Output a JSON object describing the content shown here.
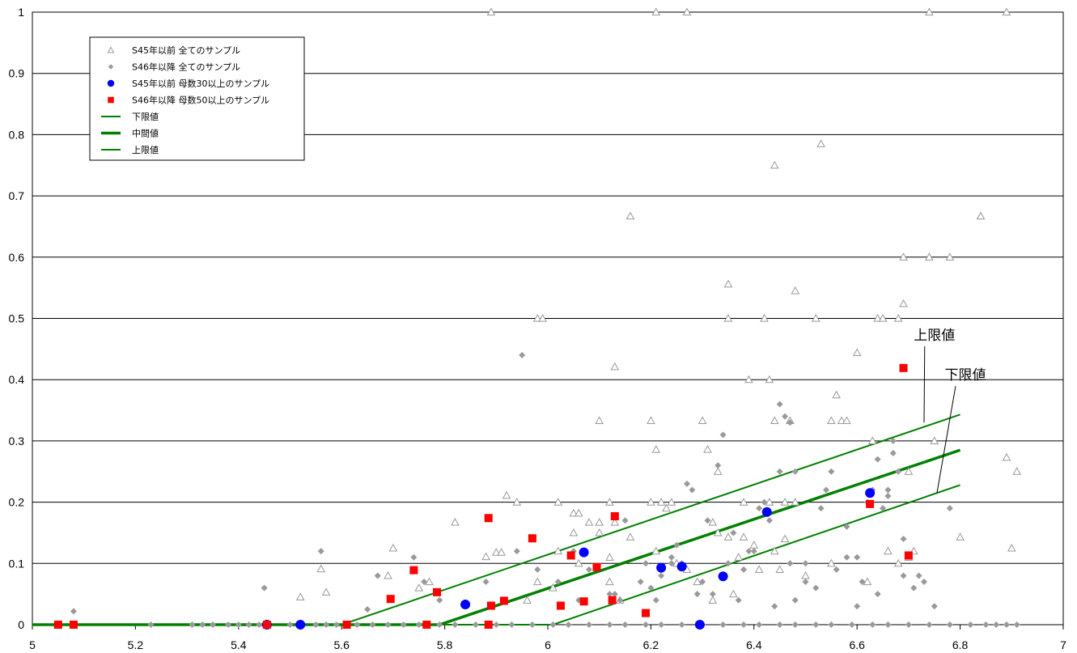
{
  "chart_data": {
    "type": "scatter",
    "xlim": [
      5,
      7
    ],
    "ylim": [
      0,
      1
    ],
    "x_ticks": [
      "5",
      "5.2",
      "5.4",
      "5.6",
      "5.8",
      "6",
      "6.2",
      "6.4",
      "6.6",
      "6.8",
      "7"
    ],
    "y_ticks": [
      "0",
      "0.1",
      "0.2",
      "0.3",
      "0.4",
      "0.5",
      "0.6",
      "0.7",
      "0.8",
      "0.9",
      "1"
    ],
    "grid": "horizontal",
    "legend_position": "top-left",
    "colors": {
      "triangle": "#999999",
      "diamond": "#999999",
      "circle": "#0000ff",
      "square": "#ff0000",
      "line": "#008000"
    },
    "series": [
      {
        "name": "S45年以前 全てのサンプル",
        "marker": "triangle",
        "points": [
          [
            5.89,
            1
          ],
          [
            6.21,
            1
          ],
          [
            6.27,
            1
          ],
          [
            6.74,
            1
          ],
          [
            6.89,
            1
          ],
          [
            6.53,
            0.785
          ],
          [
            6.44,
            0.75
          ],
          [
            6.84,
            0.667
          ],
          [
            6.16,
            0.667
          ],
          [
            6.69,
            0.6
          ],
          [
            6.74,
            0.6
          ],
          [
            6.78,
            0.6
          ],
          [
            6.35,
            0.556
          ],
          [
            6.48,
            0.545
          ],
          [
            6.69,
            0.524
          ],
          [
            5.98,
            0.5
          ],
          [
            5.99,
            0.5
          ],
          [
            6.35,
            0.5
          ],
          [
            6.42,
            0.5
          ],
          [
            6.52,
            0.5
          ],
          [
            6.64,
            0.5
          ],
          [
            6.65,
            0.5
          ],
          [
            6.68,
            0.5
          ],
          [
            6.6,
            0.444
          ],
          [
            6.13,
            0.421
          ],
          [
            6.39,
            0.4
          ],
          [
            6.43,
            0.4
          ],
          [
            6.56,
            0.375
          ],
          [
            6.57,
            0.333
          ],
          [
            6.58,
            0.333
          ],
          [
            6.1,
            0.333
          ],
          [
            6.2,
            0.333
          ],
          [
            6.3,
            0.333
          ],
          [
            6.44,
            0.333
          ],
          [
            6.55,
            0.333
          ],
          [
            6.47,
            0.333
          ],
          [
            6.75,
            0.3
          ],
          [
            6.63,
            0.3
          ],
          [
            6.21,
            0.286
          ],
          [
            6.31,
            0.286
          ],
          [
            6.33,
            0.25
          ],
          [
            6.89,
            0.273
          ],
          [
            6.91,
            0.25
          ],
          [
            6.7,
            0.25
          ],
          [
            6.43,
            0.2
          ],
          [
            6.46,
            0.2
          ],
          [
            6.48,
            0.2
          ],
          [
            6.38,
            0.2
          ],
          [
            6.2,
            0.2
          ],
          [
            6.24,
            0.2
          ],
          [
            6.12,
            0.2
          ],
          [
            6.02,
            0.2
          ],
          [
            5.94,
            0.2
          ],
          [
            5.92,
            0.211
          ],
          [
            6.05,
            0.182
          ],
          [
            6.06,
            0.182
          ],
          [
            6.08,
            0.167
          ],
          [
            6.1,
            0.167
          ],
          [
            6.13,
            0.167
          ],
          [
            6.16,
            0.143
          ],
          [
            6.32,
            0.167
          ],
          [
            6.35,
            0.143
          ],
          [
            6.38,
            0.143
          ],
          [
            5.82,
            0.167
          ],
          [
            5.88,
            0.111
          ],
          [
            5.9,
            0.118
          ],
          [
            5.91,
            0.118
          ],
          [
            5.7,
            0.125
          ],
          [
            5.52,
            0.045
          ],
          [
            5.57,
            0.053
          ],
          [
            5.56,
            0.091
          ],
          [
            6.8,
            0.143
          ],
          [
            6.9,
            0.125
          ],
          [
            6.68,
            0.1
          ],
          [
            6.55,
            0.1
          ],
          [
            6.36,
            0.05
          ],
          [
            6.25,
            0.1
          ],
          [
            6.22,
            0.2
          ],
          [
            6.12,
            0.07
          ],
          [
            6.06,
            0.1
          ],
          [
            5.98,
            0.07
          ],
          [
            5.96,
            0.04
          ],
          [
            5.77,
            0.07
          ],
          [
            5.75,
            0.06
          ],
          [
            5.69,
            0.08
          ],
          [
            6.01,
            0.06
          ],
          [
            6.21,
            0.12
          ],
          [
            6.62,
            0.07
          ],
          [
            6.27,
            0.09
          ],
          [
            6.33,
            0.15
          ],
          [
            6.45,
            0.09
          ],
          [
            6.5,
            0.08
          ],
          [
            6.44,
            0.12
          ],
          [
            6.37,
            0.11
          ],
          [
            6.05,
            0.15
          ],
          [
            6.1,
            0.15
          ],
          [
            6.14,
            0.04
          ],
          [
            6.29,
            0.07
          ],
          [
            6.32,
            0.04
          ],
          [
            6.41,
            0.09
          ],
          [
            6.66,
            0.12
          ],
          [
            6.7,
            0.11
          ],
          [
            6.12,
            0.11
          ],
          [
            6.02,
            0.12
          ],
          [
            6.23,
            0.19
          ],
          [
            6.46,
            0.14
          ],
          [
            6.4,
            0.13
          ],
          [
            6.71,
            0.12
          ]
        ]
      },
      {
        "name": "S46年以降 全てのサンプル",
        "marker": "diamond",
        "points": [
          [
            5.08,
            0.022
          ],
          [
            5.45,
            0.06
          ],
          [
            5.56,
            0.12
          ],
          [
            5.65,
            0.025
          ],
          [
            5.67,
            0.08
          ],
          [
            5.74,
            0.11
          ],
          [
            5.76,
            0.07
          ],
          [
            5.79,
            0.04
          ],
          [
            5.88,
            0.07
          ],
          [
            5.94,
            0.12
          ],
          [
            5.95,
            0.44
          ],
          [
            5.98,
            0.09
          ],
          [
            6.02,
            0.07
          ],
          [
            6.05,
            0.12
          ],
          [
            6.08,
            0.09
          ],
          [
            6.12,
            0.05
          ],
          [
            6.18,
            0.07
          ],
          [
            6.2,
            0.06
          ],
          [
            6.22,
            0.08
          ],
          [
            6.21,
            0.04
          ],
          [
            6.24,
            0.11
          ],
          [
            6.25,
            0.13
          ],
          [
            6.26,
            0.1
          ],
          [
            6.28,
            0.22
          ],
          [
            6.27,
            0.23
          ],
          [
            6.3,
            0.07
          ],
          [
            6.31,
            0.17
          ],
          [
            6.33,
            0.26
          ],
          [
            6.34,
            0.31
          ],
          [
            6.36,
            0.15
          ],
          [
            6.38,
            0.09
          ],
          [
            6.39,
            0.12
          ],
          [
            6.41,
            0.19
          ],
          [
            6.42,
            0.2
          ],
          [
            6.43,
            0.17
          ],
          [
            6.45,
            0.25
          ],
          [
            6.46,
            0.34
          ],
          [
            6.47,
            0.33
          ],
          [
            6.45,
            0.36
          ],
          [
            6.48,
            0.25
          ],
          [
            6.5,
            0.1
          ],
          [
            6.52,
            0.06
          ],
          [
            6.53,
            0.19
          ],
          [
            6.54,
            0.22
          ],
          [
            6.55,
            0.25
          ],
          [
            6.58,
            0.11
          ],
          [
            6.6,
            0.11
          ],
          [
            6.61,
            0.07
          ],
          [
            6.62,
            0.2
          ],
          [
            6.63,
            0.22
          ],
          [
            6.64,
            0.27
          ],
          [
            6.65,
            0.19
          ],
          [
            6.66,
            0.21
          ],
          [
            6.67,
            0.3
          ],
          [
            6.68,
            0.25
          ],
          [
            6.69,
            0.14
          ],
          [
            6.69,
            0.08
          ],
          [
            6.71,
            0.06
          ],
          [
            6.72,
            0.08
          ],
          [
            6.73,
            0.07
          ],
          [
            6.75,
            0.03
          ],
          [
            6.78,
            0.19
          ],
          [
            6.44,
            0.03
          ],
          [
            6.37,
            0.04
          ],
          [
            6.29,
            0.05
          ],
          [
            6.19,
            0.1
          ],
          [
            6.14,
            0.04
          ],
          [
            6.06,
            0.04
          ],
          [
            6.35,
            0.1
          ],
          [
            6.47,
            0.1
          ],
          [
            6.5,
            0.07
          ],
          [
            6.56,
            0.09
          ],
          [
            6.6,
            0.03
          ],
          [
            6.58,
            0.16
          ],
          [
            6.64,
            0.05
          ],
          [
            6.66,
            0.22
          ],
          [
            6.67,
            0.28
          ],
          [
            6.13,
            0.05
          ],
          [
            6.15,
            0.17
          ],
          [
            6.24,
            0.1
          ],
          [
            6.32,
            0.05
          ],
          [
            6.4,
            0.12
          ],
          [
            6.48,
            0.04
          ],
          [
            5.05,
            0
          ],
          [
            5.23,
            0
          ],
          [
            5.31,
            0
          ],
          [
            5.33,
            0
          ],
          [
            5.35,
            0
          ],
          [
            5.38,
            0
          ],
          [
            5.4,
            0
          ],
          [
            5.42,
            0
          ],
          [
            5.44,
            0
          ],
          [
            5.5,
            0
          ],
          [
            5.52,
            0
          ],
          [
            5.55,
            0
          ],
          [
            5.57,
            0
          ],
          [
            5.59,
            0
          ],
          [
            5.63,
            0
          ],
          [
            5.66,
            0
          ],
          [
            5.69,
            0
          ],
          [
            5.72,
            0
          ],
          [
            5.75,
            0
          ],
          [
            5.79,
            0
          ],
          [
            5.82,
            0
          ],
          [
            5.86,
            0
          ],
          [
            5.9,
            0
          ],
          [
            5.93,
            0
          ],
          [
            5.97,
            0
          ],
          [
            6.01,
            0
          ],
          [
            6.04,
            0
          ],
          [
            6.08,
            0
          ],
          [
            6.12,
            0
          ],
          [
            6.15,
            0
          ],
          [
            6.19,
            0
          ],
          [
            6.22,
            0
          ],
          [
            6.26,
            0
          ],
          [
            6.3,
            0
          ],
          [
            6.34,
            0
          ],
          [
            6.38,
            0
          ],
          [
            6.41,
            0
          ],
          [
            6.45,
            0
          ],
          [
            6.48,
            0
          ],
          [
            6.52,
            0
          ],
          [
            6.55,
            0
          ],
          [
            6.59,
            0
          ],
          [
            6.63,
            0
          ],
          [
            6.66,
            0
          ],
          [
            6.7,
            0
          ],
          [
            6.74,
            0
          ],
          [
            6.78,
            0
          ],
          [
            6.82,
            0
          ],
          [
            6.85,
            0
          ],
          [
            6.87,
            0
          ],
          [
            6.89,
            0
          ],
          [
            6.91,
            0
          ]
        ]
      },
      {
        "name": "S45年以前 母数30以上のサンプル",
        "marker": "circle",
        "points": [
          [
            5.455,
            0
          ],
          [
            5.52,
            0
          ],
          [
            5.84,
            0.033
          ],
          [
            6.07,
            0.118
          ],
          [
            6.22,
            0.093
          ],
          [
            6.26,
            0.095
          ],
          [
            6.295,
            0
          ],
          [
            6.34,
            0.079
          ],
          [
            6.425,
            0.184
          ],
          [
            6.625,
            0.215
          ]
        ]
      },
      {
        "name": "S46年以降 母数50以上のサンプル",
        "marker": "square",
        "points": [
          [
            5.05,
            0
          ],
          [
            5.08,
            0
          ],
          [
            5.455,
            0
          ],
          [
            5.61,
            0
          ],
          [
            5.765,
            0
          ],
          [
            5.885,
            0
          ],
          [
            5.695,
            0.042
          ],
          [
            5.74,
            0.089
          ],
          [
            5.785,
            0.053
          ],
          [
            5.885,
            0.174
          ],
          [
            5.89,
            0.031
          ],
          [
            5.915,
            0.039
          ],
          [
            5.97,
            0.141
          ],
          [
            6.025,
            0.031
          ],
          [
            6.045,
            0.113
          ],
          [
            6.07,
            0.038
          ],
          [
            6.095,
            0.094
          ],
          [
            6.125,
            0.04
          ],
          [
            6.13,
            0.177
          ],
          [
            6.19,
            0.019
          ],
          [
            6.625,
            0.197
          ],
          [
            6.69,
            0.419
          ],
          [
            6.7,
            0.113
          ]
        ]
      },
      {
        "name": "下限値",
        "marker": "line",
        "points": [
          [
            5,
            0
          ],
          [
            6.01,
            0
          ],
          [
            6.8,
            0.228
          ]
        ]
      },
      {
        "name": "中間値",
        "marker": "line-thick",
        "points": [
          [
            5,
            0
          ],
          [
            5.79,
            0
          ],
          [
            6.8,
            0.285
          ]
        ]
      },
      {
        "name": "上限値",
        "marker": "line",
        "points": [
          [
            5,
            0
          ],
          [
            5.6,
            0
          ],
          [
            6.8,
            0.343
          ]
        ]
      }
    ],
    "annotations": [
      {
        "text": "上限値",
        "text_x": 6.75,
        "text_y": 0.465,
        "target_x": 6.73,
        "target_y": 0.33
      },
      {
        "text": "下限値",
        "text_x": 6.81,
        "text_y": 0.4,
        "target_x": 6.755,
        "target_y": 0.215
      }
    ]
  }
}
